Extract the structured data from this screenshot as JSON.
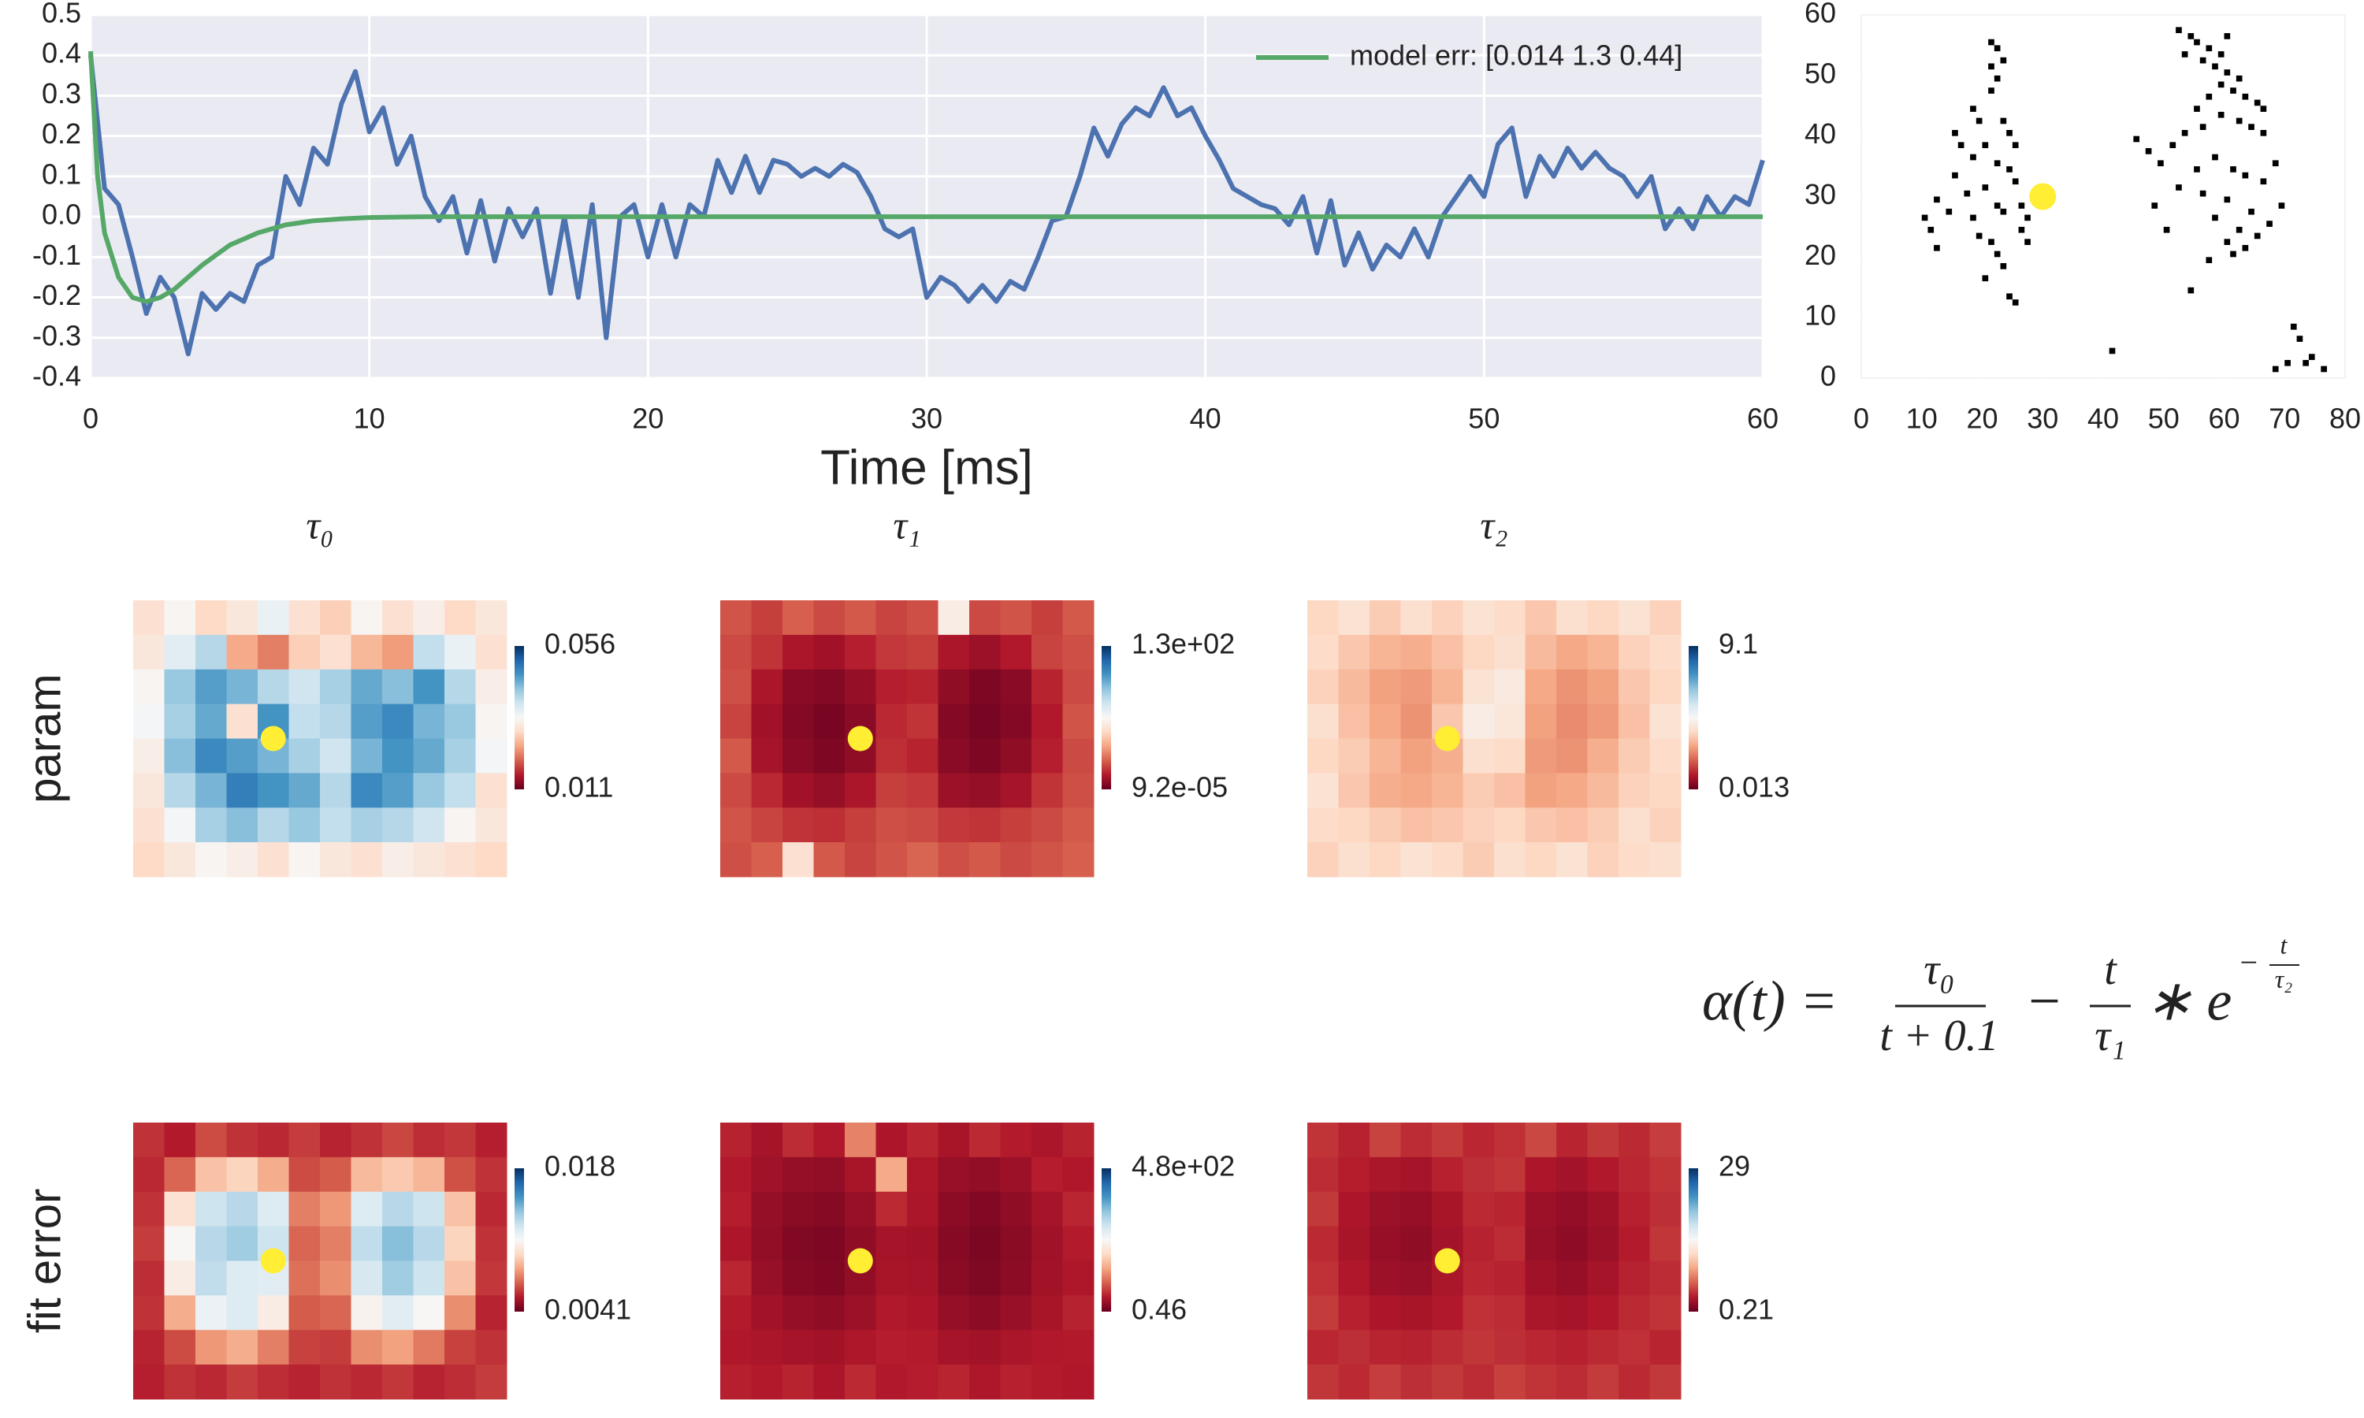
{
  "chart_data": [
    {
      "type": "line",
      "xlabel": "Time [ms]",
      "xlim": [
        0,
        60
      ],
      "xticks": [
        0,
        10,
        20,
        30,
        40,
        50,
        60
      ],
      "ylim": [
        -0.4,
        0.5
      ],
      "yticks": [
        -0.4,
        -0.3,
        -0.2,
        -0.1,
        {
          "value": 0,
          "label": "0.0"
        },
        0.1,
        0.2,
        0.3,
        0.4,
        0.5
      ],
      "grid": true,
      "legend": "upper right",
      "series": [
        {
          "color": "#4c72b0",
          "x": [
            0,
            0.5,
            1,
            1.5,
            2,
            2.5,
            3,
            3.5,
            4,
            4.5,
            5,
            5.5,
            6,
            6.5,
            7,
            7.5,
            8,
            8.5,
            9,
            9.5,
            10,
            10.5,
            11,
            11.5,
            12,
            12.5,
            13,
            13.5,
            14,
            14.5,
            15,
            15.5,
            16,
            16.5,
            17,
            17.5,
            18,
            18.5,
            19,
            19.5,
            20,
            20.5,
            21,
            21.5,
            22,
            22.5,
            23,
            23.5,
            24,
            24.5,
            25,
            25.5,
            26,
            26.5,
            27,
            27.5,
            28,
            28.5,
            29,
            29.5,
            30,
            30.5,
            31,
            31.5,
            32,
            32.5,
            33,
            33.5,
            34,
            34.5,
            35,
            35.5,
            36,
            36.5,
            37,
            37.5,
            38,
            38.5,
            39,
            39.5,
            40,
            40.5,
            41,
            41.5,
            42,
            42.5,
            43,
            43.5,
            44,
            44.5,
            45,
            45.5,
            46,
            46.5,
            47,
            47.5,
            48,
            48.5,
            49,
            49.5,
            50,
            50.5,
            51,
            51.5,
            52,
            52.5,
            53,
            53.5,
            54,
            54.5,
            55,
            55.5,
            56,
            56.5,
            57,
            57.5,
            58,
            58.5,
            59,
            59.5,
            60
          ],
          "values": [
            0.4,
            0.07,
            0.03,
            -0.1,
            -0.24,
            -0.15,
            -0.2,
            -0.34,
            -0.19,
            -0.23,
            -0.19,
            -0.21,
            -0.12,
            -0.1,
            0.1,
            0.03,
            0.17,
            0.13,
            0.28,
            0.36,
            0.21,
            0.27,
            0.13,
            0.2,
            0.05,
            -0.01,
            0.05,
            -0.09,
            0.04,
            -0.11,
            0.02,
            -0.05,
            0.02,
            -0.19,
            0,
            -0.2,
            0.03,
            -0.3,
            0,
            0.03,
            -0.1,
            0.03,
            -0.1,
            0.03,
            0,
            0.14,
            0.06,
            0.15,
            0.06,
            0.14,
            0.13,
            0.1,
            0.12,
            0.1,
            0.13,
            0.11,
            0.05,
            -0.03,
            -0.05,
            -0.03,
            -0.2,
            -0.15,
            -0.17,
            -0.21,
            -0.17,
            -0.21,
            -0.16,
            -0.18,
            -0.1,
            -0.01,
            0,
            0.1,
            0.22,
            0.15,
            0.23,
            0.27,
            0.25,
            0.32,
            0.25,
            0.27,
            0.2,
            0.14,
            0.07,
            0.05,
            0.03,
            0.02,
            -0.02,
            0.05,
            -0.09,
            0.04,
            -0.12,
            -0.04,
            -0.13,
            -0.07,
            -0.1,
            -0.03,
            -0.1,
            0,
            0.05,
            0.1,
            0.05,
            0.18,
            0.22,
            0.05,
            0.15,
            0.1,
            0.17,
            0.12,
            0.16,
            0.12,
            0.1,
            0.05,
            0.1,
            -0.03,
            0.02,
            -0.03,
            0.05,
            0,
            0.05,
            0.03,
            0.14
          ]
        },
        {
          "name": "model err: [0.014 1.3 0.44]",
          "color": "#55a868",
          "x": [
            0,
            0.25,
            0.5,
            1,
            1.5,
            2,
            2.5,
            3,
            3.5,
            4,
            5,
            6,
            7,
            8,
            9,
            10,
            12,
            15,
            20,
            30,
            40,
            50,
            60
          ],
          "values": [
            0.41,
            0.1,
            -0.04,
            -0.15,
            -0.2,
            -0.21,
            -0.2,
            -0.18,
            -0.15,
            -0.12,
            -0.07,
            -0.04,
            -0.02,
            -0.01,
            -0.005,
            -0.002,
            0,
            0,
            0,
            0,
            0,
            0,
            0
          ]
        }
      ]
    },
    {
      "type": "scatter",
      "marker_shape": "square",
      "color": "#000000",
      "xlim": [
        0,
        80
      ],
      "xticks": [
        0,
        10,
        20,
        30,
        40,
        50,
        60,
        70,
        80
      ],
      "ylim": [
        0,
        60
      ],
      "yticks": [
        0,
        10,
        20,
        30,
        40,
        50,
        60
      ],
      "x": [
        21,
        22,
        23,
        21,
        22,
        21,
        18,
        19,
        23,
        24,
        25,
        20,
        15,
        16,
        18,
        22,
        24,
        25,
        20,
        17,
        22,
        23,
        26,
        27,
        14,
        10,
        11,
        12,
        19,
        21,
        22,
        23,
        20,
        24,
        25,
        12,
        26,
        18,
        27,
        15,
        52,
        54,
        55,
        57,
        53,
        56,
        58,
        60,
        62,
        59,
        61,
        63,
        65,
        57,
        55,
        59,
        62,
        64,
        66,
        53,
        51,
        47,
        45,
        49,
        55,
        58,
        61,
        63,
        66,
        68,
        69,
        52,
        56,
        60,
        64,
        58,
        62,
        65,
        67,
        63,
        61,
        54,
        60,
        57,
        50,
        48,
        56,
        66,
        60,
        59,
        41,
        71,
        72,
        74,
        68,
        70,
        76,
        73
      ],
      "values": [
        55,
        54,
        52,
        51,
        49,
        47,
        44,
        42,
        42,
        40,
        38,
        38,
        40,
        38,
        36,
        35,
        34,
        32,
        31,
        30,
        28,
        27,
        28,
        26,
        27,
        26,
        24,
        21,
        23,
        22,
        20,
        18,
        16,
        13,
        12,
        29,
        24,
        26,
        22,
        33,
        57,
        56,
        55,
        54,
        53,
        52,
        51,
        50,
        49,
        48,
        47,
        46,
        45,
        46,
        44,
        43,
        42,
        41,
        40,
        40,
        38,
        37,
        39,
        35,
        34,
        36,
        34,
        33,
        32,
        35,
        28,
        31,
        30,
        29,
        27,
        26,
        24,
        23,
        25,
        21,
        20,
        14,
        22,
        19,
        24,
        28,
        41,
        44,
        56,
        53,
        4,
        8,
        6,
        3,
        1,
        2,
        1,
        2
      ],
      "highlight": {
        "x": 30,
        "y": 30,
        "color": "#ffee33"
      }
    },
    {
      "type": "heatmap",
      "colormap": "RdBu",
      "colorbar_ticks": [
        0.011,
        0.056
      ],
      "values": [
        [
          0.03,
          0.033,
          0.029,
          0.031,
          0.035,
          0.03,
          0.028,
          0.033,
          0.03,
          0.032,
          0.029,
          0.031
        ],
        [
          0.031,
          0.036,
          0.04,
          0.025,
          0.022,
          0.028,
          0.03,
          0.026,
          0.024,
          0.039,
          0.035,
          0.03
        ],
        [
          0.033,
          0.042,
          0.046,
          0.044,
          0.04,
          0.038,
          0.041,
          0.045,
          0.043,
          0.047,
          0.04,
          0.032
        ],
        [
          0.034,
          0.041,
          0.045,
          0.03,
          0.047,
          0.039,
          0.04,
          0.046,
          0.048,
          0.044,
          0.042,
          0.033
        ],
        [
          0.032,
          0.043,
          0.048,
          0.046,
          0.044,
          0.041,
          0.038,
          0.044,
          0.047,
          0.045,
          0.041,
          0.034
        ],
        [
          0.031,
          0.04,
          0.044,
          0.049,
          0.047,
          0.045,
          0.04,
          0.048,
          0.046,
          0.042,
          0.039,
          0.03
        ],
        [
          0.03,
          0.034,
          0.041,
          0.043,
          0.04,
          0.042,
          0.039,
          0.041,
          0.04,
          0.038,
          0.033,
          0.031
        ],
        [
          0.029,
          0.031,
          0.033,
          0.032,
          0.03,
          0.033,
          0.031,
          0.03,
          0.032,
          0.031,
          0.03,
          0.029
        ]
      ]
    },
    {
      "type": "heatmap",
      "colormap": "RdBu",
      "colorbar_ticks": [
        {
          "value": 9.2e-05,
          "label": "9.2e-05"
        },
        {
          "value": 130,
          "label": "1.3e+02"
        }
      ],
      "values": [
        [
          24,
          20,
          26,
          22,
          25,
          21,
          23,
          60,
          22,
          24,
          20,
          25
        ],
        [
          22,
          18,
          12,
          10,
          14,
          19,
          20,
          12,
          9,
          13,
          21,
          23
        ],
        [
          23,
          12,
          6,
          5,
          8,
          14,
          15,
          7,
          4,
          6,
          15,
          22
        ],
        [
          21,
          10,
          5,
          3,
          6,
          16,
          18,
          5,
          3,
          5,
          13,
          24
        ],
        [
          25,
          11,
          6,
          4,
          7,
          17,
          15,
          6,
          4,
          7,
          14,
          22
        ],
        [
          22,
          16,
          10,
          8,
          12,
          20,
          19,
          9,
          8,
          11,
          18,
          23
        ],
        [
          24,
          21,
          18,
          17,
          20,
          23,
          22,
          19,
          18,
          20,
          22,
          25
        ],
        [
          23,
          26,
          55,
          25,
          21,
          24,
          27,
          23,
          25,
          22,
          24,
          26
        ]
      ]
    },
    {
      "type": "heatmap",
      "colormap": "RdBu",
      "colorbar_ticks": [
        0.013,
        9.1
      ],
      "values": [
        [
          3.6,
          3.9,
          3.4,
          3.8,
          3.5,
          3.9,
          3.7,
          3.3,
          3.8,
          3.6,
          3.9,
          3.5
        ],
        [
          3.7,
          3.3,
          3.0,
          2.9,
          3.2,
          3.6,
          3.8,
          3.1,
          2.8,
          3.0,
          3.5,
          3.7
        ],
        [
          3.5,
          3.1,
          2.7,
          2.6,
          3.0,
          3.9,
          4.1,
          2.8,
          2.5,
          2.7,
          3.3,
          3.6
        ],
        [
          3.8,
          3.2,
          2.8,
          2.5,
          3.3,
          4.2,
          4.0,
          2.7,
          2.4,
          2.6,
          3.2,
          3.9
        ],
        [
          3.6,
          3.4,
          3.0,
          2.7,
          2.9,
          3.8,
          3.7,
          2.6,
          2.5,
          2.9,
          3.4,
          3.7
        ],
        [
          3.9,
          3.3,
          2.9,
          2.8,
          3.0,
          3.4,
          3.2,
          2.7,
          2.8,
          3.1,
          3.5,
          3.6
        ],
        [
          3.7,
          3.6,
          3.4,
          3.2,
          3.3,
          3.5,
          3.6,
          3.3,
          3.2,
          3.4,
          3.8,
          3.5
        ],
        [
          3.5,
          3.8,
          3.6,
          3.9,
          3.7,
          3.4,
          3.8,
          3.6,
          3.9,
          3.5,
          3.7,
          3.8
        ]
      ]
    },
    {
      "type": "heatmap",
      "colormap": "RdBu",
      "colorbar_ticks": [
        0.0041,
        0.018
      ],
      "values": [
        [
          0.006,
          0.0055,
          0.0065,
          0.006,
          0.0058,
          0.0062,
          0.0057,
          0.006,
          0.0064,
          0.0059,
          0.0061,
          0.0056
        ],
        [
          0.0058,
          0.007,
          0.009,
          0.0095,
          0.0085,
          0.0065,
          0.0068,
          0.0088,
          0.0092,
          0.0087,
          0.0066,
          0.006
        ],
        [
          0.006,
          0.01,
          0.0125,
          0.013,
          0.012,
          0.0075,
          0.008,
          0.012,
          0.013,
          0.0125,
          0.009,
          0.0058
        ],
        [
          0.0062,
          0.011,
          0.013,
          0.0135,
          0.0125,
          0.007,
          0.0075,
          0.0128,
          0.014,
          0.013,
          0.0095,
          0.006
        ],
        [
          0.0059,
          0.0105,
          0.0128,
          0.012,
          0.0118,
          0.0072,
          0.0078,
          0.0122,
          0.0135,
          0.0125,
          0.009,
          0.0061
        ],
        [
          0.006,
          0.0085,
          0.0115,
          0.012,
          0.0105,
          0.0068,
          0.007,
          0.0108,
          0.0118,
          0.011,
          0.0078,
          0.0057
        ],
        [
          0.0057,
          0.0065,
          0.008,
          0.0085,
          0.0075,
          0.0063,
          0.0062,
          0.0078,
          0.0082,
          0.0074,
          0.0063,
          0.006
        ],
        [
          0.0056,
          0.006,
          0.0058,
          0.0062,
          0.0059,
          0.0057,
          0.006,
          0.0058,
          0.0061,
          0.0057,
          0.0059,
          0.0062
        ]
      ]
    },
    {
      "type": "heatmap",
      "colormap": "RdBu",
      "colorbar_ticks": [
        0.46,
        {
          "value": 480,
          "label": "4.8e+02"
        }
      ],
      "values": [
        [
          55,
          40,
          62,
          48,
          120,
          45,
          58,
          42,
          60,
          50,
          44,
          56
        ],
        [
          48,
          36,
          30,
          28,
          42,
          150,
          46,
          32,
          28,
          35,
          52,
          47
        ],
        [
          52,
          30,
          22,
          20,
          32,
          60,
          44,
          25,
          18,
          26,
          40,
          58
        ],
        [
          45,
          28,
          18,
          15,
          26,
          40,
          38,
          20,
          14,
          22,
          36,
          50
        ],
        [
          58,
          32,
          20,
          17,
          28,
          42,
          40,
          22,
          16,
          24,
          38,
          46
        ],
        [
          50,
          38,
          30,
          26,
          34,
          48,
          45,
          30,
          24,
          32,
          42,
          55
        ],
        [
          47,
          44,
          40,
          38,
          46,
          52,
          50,
          41,
          38,
          44,
          48,
          49
        ],
        [
          53,
          49,
          56,
          45,
          60,
          48,
          52,
          57,
          46,
          54,
          50,
          47
        ]
      ]
    },
    {
      "type": "heatmap",
      "colormap": "RdBu",
      "colorbar_ticks": [
        0.21,
        29
      ],
      "values": [
        [
          4.2,
          3.5,
          4.8,
          3.9,
          4.5,
          3.7,
          4.1,
          5.0,
          3.6,
          4.4,
          3.8,
          4.6
        ],
        [
          3.9,
          3.3,
          2.8,
          2.6,
          3.4,
          4.0,
          4.3,
          2.9,
          2.5,
          3.1,
          3.7,
          4.2
        ],
        [
          4.4,
          2.9,
          2.2,
          2.0,
          2.7,
          3.8,
          3.6,
          2.3,
          1.9,
          2.4,
          3.4,
          4.0
        ],
        [
          3.8,
          2.7,
          2.0,
          1.8,
          2.5,
          3.5,
          3.9,
          2.1,
          1.7,
          2.2,
          3.2,
          4.3
        ],
        [
          4.1,
          3.0,
          2.3,
          2.1,
          2.8,
          3.7,
          3.5,
          2.4,
          2.0,
          2.6,
          3.5,
          3.9
        ],
        [
          4.5,
          3.4,
          2.9,
          2.7,
          3.1,
          4.1,
          3.9,
          2.8,
          2.6,
          3.0,
          3.8,
          4.2
        ],
        [
          3.7,
          4.0,
          3.6,
          3.5,
          3.9,
          4.3,
          4.0,
          3.7,
          3.4,
          3.8,
          4.1,
          3.6
        ],
        [
          4.3,
          3.8,
          4.6,
          4.0,
          4.4,
          3.9,
          4.7,
          4.2,
          3.9,
          4.5,
          3.8,
          4.4
        ]
      ]
    }
  ],
  "column_titles": [
    "τ₀",
    "τ₁",
    "τ₂"
  ],
  "row_labels": [
    "param",
    "fit error"
  ],
  "formula": {
    "lhs": "α(t) =",
    "num1": "τ₀",
    "den1": "t + 0.1",
    "op1": "−",
    "num2": "t",
    "den2": "τ₁",
    "op2": "∗ e",
    "exp_op": "−",
    "exp_num": "t",
    "exp_den": "τ₂"
  }
}
